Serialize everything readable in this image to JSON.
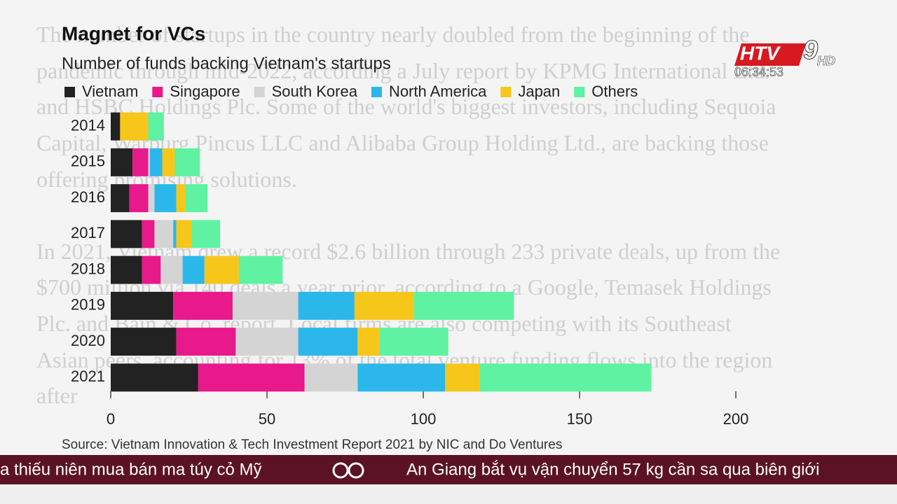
{
  "background_text": {
    "paragraphs": [
      "The number of startups in the country nearly doubled from the beginning of the pandemic through mid-2022, according a July report by KPMG International Ltd. and HSBC Holdings Plc. Some of the world's biggest investors, including Sequoia Capital, Warburg Pincus LLC and Alibaba Group Holding Ltd., are backing those offering promising solutions.",
      "In 2021, Vietnam drew a record $2.6 billion through 233 private deals, up from the $700 million via 140 deals a year prior, according to a Google, Temasek Holdings Plc. and Bain & Co. report. Local firms are also competing with its Southeast Asian peers, accounting for 13% of the total venture funding flows into the region after"
    ]
  },
  "broadcast": {
    "logo": "HTV",
    "channel": "9",
    "hd": "HD",
    "clock": "06:34:53",
    "ticker": [
      "a thiếu niên mua bán ma túy cỏ Mỹ",
      "An Giang bắt vụ vận chuyển 57 kg cần sa qua biên giới"
    ]
  },
  "chart_data": {
    "type": "stacked_barh",
    "title": "Magnet for VCs",
    "subtitle": "Number of funds backing Vietnam's startups",
    "source": "Source: Vietnam Innovation & Tech Investment Report 2021 by NIC and Do Ventures",
    "categories": [
      "2014",
      "2015",
      "2016",
      "2017",
      "2018",
      "2019",
      "2020",
      "2021"
    ],
    "series": [
      {
        "name": "Vietnam",
        "color": "#222222",
        "values": [
          3,
          7,
          6,
          10,
          10,
          20,
          21,
          28
        ]
      },
      {
        "name": "Singapore",
        "color": "#e8198b",
        "values": [
          0,
          5,
          6,
          4,
          6,
          19,
          19,
          34
        ]
      },
      {
        "name": "South Korea",
        "color": "#d4d4d4",
        "values": [
          0,
          0.5,
          2,
          6,
          7,
          21,
          20,
          17
        ]
      },
      {
        "name": "North America",
        "color": "#2cb7ea",
        "values": [
          0,
          4,
          7,
          1,
          7,
          18,
          19,
          28
        ]
      },
      {
        "name": "Japan",
        "color": "#f6c61b",
        "values": [
          9,
          4,
          3,
          5,
          11,
          19,
          7,
          11
        ]
      },
      {
        "name": "Others",
        "color": "#5ef2a2",
        "values": [
          5,
          8,
          7,
          9,
          14,
          32,
          22,
          55
        ]
      }
    ],
    "xlim": [
      0,
      200
    ],
    "xticks": [
      0,
      50,
      100,
      150,
      200
    ]
  }
}
